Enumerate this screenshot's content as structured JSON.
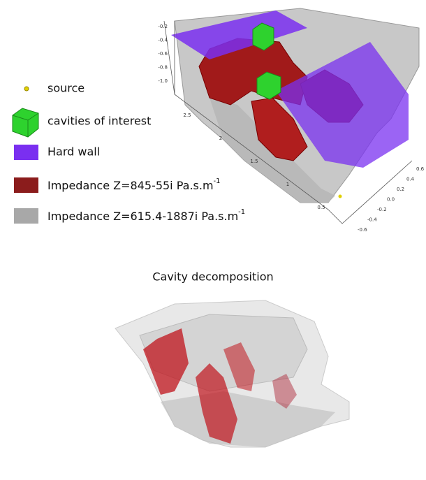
{
  "legend": [
    {
      "label": "source"
    },
    {
      "label": "cavities of interest"
    },
    {
      "label": "Hard wall"
    },
    {
      "label": "Impedance Z=845-55i Pa.s.m",
      "superscript": "-1"
    },
    {
      "label": "Impedance Z=615.4-1887i Pa.s.m",
      "superscript": "-1"
    }
  ],
  "axes": {
    "vertical": [
      "-0.2",
      "-0.4",
      "-0.6",
      "-0.8",
      "-1.0"
    ],
    "depth": [
      "2.5",
      "2",
      "1.5",
      "1",
      "0.5"
    ],
    "lateral": [
      "0.6",
      "0.4",
      "0.2",
      "0.0",
      "-0.2",
      "-0.4",
      "-0.6"
    ]
  },
  "bottom_panel": {
    "title": "Cavity decomposition"
  }
}
